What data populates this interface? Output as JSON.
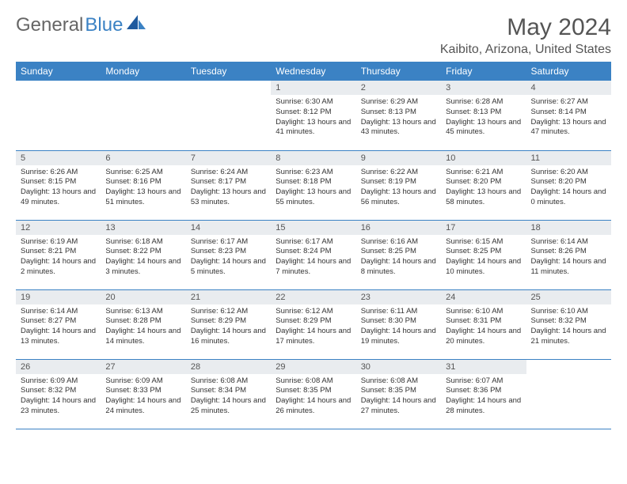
{
  "brand": {
    "part1": "General",
    "part2": "Blue"
  },
  "title": "May 2024",
  "location": "Kaibito, Arizona, United States",
  "colors": {
    "header_bg": "#3b82c4",
    "header_text": "#ffffff",
    "daynum_bg": "#e9ecef",
    "border": "#3b82c4",
    "brand_gray": "#666",
    "brand_blue": "#3b82c4"
  },
  "day_headers": [
    "Sunday",
    "Monday",
    "Tuesday",
    "Wednesday",
    "Thursday",
    "Friday",
    "Saturday"
  ],
  "weeks": [
    [
      null,
      null,
      null,
      {
        "num": "1",
        "sunrise": "6:30 AM",
        "sunset": "8:12 PM",
        "daylight": "13 hours and 41 minutes."
      },
      {
        "num": "2",
        "sunrise": "6:29 AM",
        "sunset": "8:13 PM",
        "daylight": "13 hours and 43 minutes."
      },
      {
        "num": "3",
        "sunrise": "6:28 AM",
        "sunset": "8:13 PM",
        "daylight": "13 hours and 45 minutes."
      },
      {
        "num": "4",
        "sunrise": "6:27 AM",
        "sunset": "8:14 PM",
        "daylight": "13 hours and 47 minutes."
      }
    ],
    [
      {
        "num": "5",
        "sunrise": "6:26 AM",
        "sunset": "8:15 PM",
        "daylight": "13 hours and 49 minutes."
      },
      {
        "num": "6",
        "sunrise": "6:25 AM",
        "sunset": "8:16 PM",
        "daylight": "13 hours and 51 minutes."
      },
      {
        "num": "7",
        "sunrise": "6:24 AM",
        "sunset": "8:17 PM",
        "daylight": "13 hours and 53 minutes."
      },
      {
        "num": "8",
        "sunrise": "6:23 AM",
        "sunset": "8:18 PM",
        "daylight": "13 hours and 55 minutes."
      },
      {
        "num": "9",
        "sunrise": "6:22 AM",
        "sunset": "8:19 PM",
        "daylight": "13 hours and 56 minutes."
      },
      {
        "num": "10",
        "sunrise": "6:21 AM",
        "sunset": "8:20 PM",
        "daylight": "13 hours and 58 minutes."
      },
      {
        "num": "11",
        "sunrise": "6:20 AM",
        "sunset": "8:20 PM",
        "daylight": "14 hours and 0 minutes."
      }
    ],
    [
      {
        "num": "12",
        "sunrise": "6:19 AM",
        "sunset": "8:21 PM",
        "daylight": "14 hours and 2 minutes."
      },
      {
        "num": "13",
        "sunrise": "6:18 AM",
        "sunset": "8:22 PM",
        "daylight": "14 hours and 3 minutes."
      },
      {
        "num": "14",
        "sunrise": "6:17 AM",
        "sunset": "8:23 PM",
        "daylight": "14 hours and 5 minutes."
      },
      {
        "num": "15",
        "sunrise": "6:17 AM",
        "sunset": "8:24 PM",
        "daylight": "14 hours and 7 minutes."
      },
      {
        "num": "16",
        "sunrise": "6:16 AM",
        "sunset": "8:25 PM",
        "daylight": "14 hours and 8 minutes."
      },
      {
        "num": "17",
        "sunrise": "6:15 AM",
        "sunset": "8:25 PM",
        "daylight": "14 hours and 10 minutes."
      },
      {
        "num": "18",
        "sunrise": "6:14 AM",
        "sunset": "8:26 PM",
        "daylight": "14 hours and 11 minutes."
      }
    ],
    [
      {
        "num": "19",
        "sunrise": "6:14 AM",
        "sunset": "8:27 PM",
        "daylight": "14 hours and 13 minutes."
      },
      {
        "num": "20",
        "sunrise": "6:13 AM",
        "sunset": "8:28 PM",
        "daylight": "14 hours and 14 minutes."
      },
      {
        "num": "21",
        "sunrise": "6:12 AM",
        "sunset": "8:29 PM",
        "daylight": "14 hours and 16 minutes."
      },
      {
        "num": "22",
        "sunrise": "6:12 AM",
        "sunset": "8:29 PM",
        "daylight": "14 hours and 17 minutes."
      },
      {
        "num": "23",
        "sunrise": "6:11 AM",
        "sunset": "8:30 PM",
        "daylight": "14 hours and 19 minutes."
      },
      {
        "num": "24",
        "sunrise": "6:10 AM",
        "sunset": "8:31 PM",
        "daylight": "14 hours and 20 minutes."
      },
      {
        "num": "25",
        "sunrise": "6:10 AM",
        "sunset": "8:32 PM",
        "daylight": "14 hours and 21 minutes."
      }
    ],
    [
      {
        "num": "26",
        "sunrise": "6:09 AM",
        "sunset": "8:32 PM",
        "daylight": "14 hours and 23 minutes."
      },
      {
        "num": "27",
        "sunrise": "6:09 AM",
        "sunset": "8:33 PM",
        "daylight": "14 hours and 24 minutes."
      },
      {
        "num": "28",
        "sunrise": "6:08 AM",
        "sunset": "8:34 PM",
        "daylight": "14 hours and 25 minutes."
      },
      {
        "num": "29",
        "sunrise": "6:08 AM",
        "sunset": "8:35 PM",
        "daylight": "14 hours and 26 minutes."
      },
      {
        "num": "30",
        "sunrise": "6:08 AM",
        "sunset": "8:35 PM",
        "daylight": "14 hours and 27 minutes."
      },
      {
        "num": "31",
        "sunrise": "6:07 AM",
        "sunset": "8:36 PM",
        "daylight": "14 hours and 28 minutes."
      },
      null
    ]
  ],
  "labels": {
    "sunrise": "Sunrise: ",
    "sunset": "Sunset: ",
    "daylight": "Daylight: "
  }
}
